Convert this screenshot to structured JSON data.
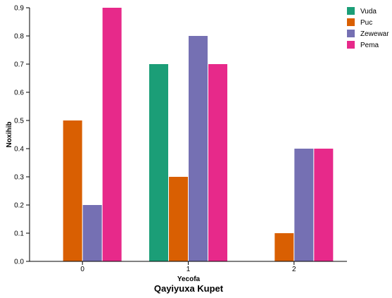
{
  "chart_data": {
    "type": "bar",
    "title": "Qayiyuxa Kupet",
    "xlabel": "Yecofa",
    "ylabel": "Noxihib",
    "categories": [
      "0",
      "1",
      "2"
    ],
    "ylim": [
      0,
      0.9
    ],
    "yticks": [
      "0.0",
      "0.1",
      "0.2",
      "0.3",
      "0.4",
      "0.5",
      "0.6",
      "0.7",
      "0.8",
      "0.9"
    ],
    "legend_position": "top-right",
    "grid": false,
    "series": [
      {
        "name": "Vuda",
        "color": "#1b9e77",
        "values": [
          null,
          0.7,
          null
        ]
      },
      {
        "name": "Puc",
        "color": "#d95f02",
        "values": [
          0.5,
          0.3,
          0.1
        ]
      },
      {
        "name": "Zewewar",
        "color": "#7570b3",
        "values": [
          0.2,
          0.8,
          0.4
        ]
      },
      {
        "name": "Pema",
        "color": "#e7298a",
        "values": [
          0.9,
          0.7,
          0.4
        ]
      }
    ]
  }
}
